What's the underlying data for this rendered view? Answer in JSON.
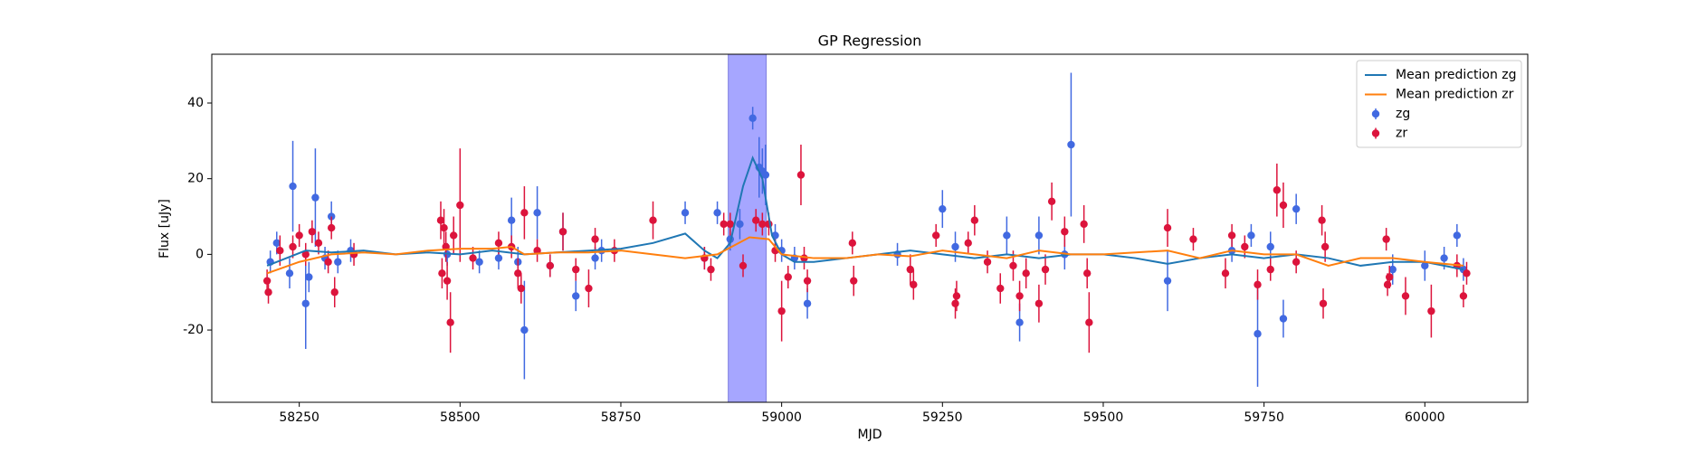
{
  "chart_data": {
    "type": "scatter",
    "title": "GP Regression",
    "x_label": "MJD",
    "y_label": "Flux [uJy]",
    "xlim": [
      58114,
      60160
    ],
    "ylim": [
      -39.1,
      52.9
    ],
    "xticks": [
      58250,
      58500,
      58750,
      59000,
      59250,
      59500,
      59750,
      60000
    ],
    "yticks": [
      -20,
      0,
      20,
      40
    ],
    "legend": "upper right",
    "span": [
      58917,
      58976
    ],
    "span_color": "#a6a6ff",
    "lines": [
      {
        "name": "Mean prediction zg",
        "color": "#1f77b4",
        "x": [
          58200,
          58230,
          58260,
          58300,
          58350,
          58400,
          58450,
          58500,
          58550,
          58600,
          58650,
          58700,
          58750,
          58800,
          58850,
          58880,
          58900,
          58920,
          58940,
          58955,
          58970,
          58985,
          59000,
          59020,
          59050,
          59100,
          59150,
          59200,
          59250,
          59300,
          59350,
          59400,
          59450,
          59500,
          59550,
          59600,
          59650,
          59700,
          59750,
          59800,
          59850,
          59900,
          59950,
          60000,
          60060
        ],
        "values": [
          -3,
          -1,
          1,
          0.5,
          1,
          0,
          0.5,
          0,
          1,
          0,
          0.5,
          1,
          1.5,
          3,
          5.5,
          1,
          -1,
          3,
          18,
          25.5,
          20,
          5,
          0,
          -2,
          -2,
          -1,
          0,
          1,
          0,
          -1,
          0,
          -1,
          0,
          0,
          -1,
          -2.5,
          -1,
          0,
          -1,
          0,
          -1,
          -3,
          -2,
          -2,
          -4
        ]
      },
      {
        "name": "Mean prediction zr",
        "color": "#ff7f0e",
        "x": [
          58200,
          58250,
          58300,
          58350,
          58400,
          58450,
          58500,
          58550,
          58580,
          58600,
          58650,
          58700,
          58750,
          58800,
          58850,
          58900,
          58950,
          58980,
          59000,
          59050,
          59100,
          59150,
          59200,
          59250,
          59300,
          59350,
          59400,
          59450,
          59500,
          59550,
          59600,
          59650,
          59700,
          59750,
          59800,
          59850,
          59900,
          59950,
          60000,
          60060
        ],
        "values": [
          -5,
          -2,
          0,
          0.5,
          0,
          1,
          1.5,
          1.5,
          2,
          0,
          0.5,
          0.5,
          1,
          0,
          -1,
          0,
          4.5,
          4,
          0,
          -1,
          -1,
          0,
          -0.5,
          1,
          0,
          -1,
          1,
          0,
          0,
          0.5,
          1,
          -1,
          1,
          0,
          0,
          -3,
          -1,
          -1,
          -2,
          -3
        ]
      }
    ],
    "series": [
      {
        "name": "zg",
        "color": "#4169e1",
        "x": [
          58205,
          58215,
          58235,
          58240,
          58260,
          58265,
          58275,
          58290,
          58300,
          58310,
          58330,
          58480,
          58530,
          58560,
          58580,
          58590,
          58600,
          58620,
          58640,
          58660,
          58680,
          58710,
          58720,
          58850,
          58880,
          58900,
          58920,
          58935,
          58955,
          58965,
          58970,
          58975,
          58990,
          59000,
          59020,
          59040,
          59180,
          59250,
          59270,
          59350,
          59370,
          59400,
          59440,
          59450,
          59600,
          59700,
          59730,
          59740,
          59760,
          59780,
          59800,
          59950,
          60000,
          60030,
          60050,
          60060
        ],
        "values": [
          -2,
          3,
          -5,
          18,
          -13,
          -6,
          15,
          -1,
          10,
          -2,
          1,
          0,
          -2,
          -1,
          9,
          -2,
          -20,
          11,
          -3,
          6,
          -11,
          -1,
          1,
          11,
          -1,
          11,
          4,
          8,
          36,
          23,
          22,
          21,
          5,
          1,
          -1,
          -13,
          0,
          12,
          2,
          5,
          -18,
          5,
          0,
          29,
          -7,
          1,
          5,
          -21,
          2,
          -17,
          12,
          -4,
          -3,
          -1,
          5,
          -4
        ],
        "errors": [
          3,
          3,
          4,
          12,
          12,
          4,
          13,
          3,
          4,
          3,
          3,
          3,
          3,
          3,
          6,
          4,
          13,
          7,
          3,
          5,
          4,
          3,
          3,
          3,
          3,
          3,
          3,
          4,
          3,
          8,
          6,
          8,
          3,
          3,
          3,
          4,
          3,
          5,
          4,
          5,
          5,
          5,
          4,
          19,
          8,
          3,
          3,
          14,
          4,
          5,
          4,
          4,
          4,
          3,
          3,
          3
        ]
      },
      {
        "name": "zr",
        "color": "#dc143c",
        "x": [
          58200,
          58202,
          58220,
          58240,
          58250,
          58260,
          58270,
          58280,
          58295,
          58300,
          58305,
          58335,
          58470,
          58472,
          58475,
          58478,
          58480,
          58485,
          58490,
          58500,
          58520,
          58560,
          58580,
          58590,
          58595,
          58600,
          58620,
          58640,
          58660,
          58680,
          58700,
          58710,
          58740,
          58800,
          58880,
          58890,
          58910,
          58920,
          58940,
          58960,
          58970,
          58980,
          58990,
          59000,
          59010,
          59030,
          59035,
          59040,
          59110,
          59112,
          59200,
          59205,
          59240,
          59270,
          59272,
          59290,
          59300,
          59320,
          59340,
          59360,
          59370,
          59380,
          59400,
          59410,
          59420,
          59440,
          59470,
          59475,
          59478,
          59600,
          59640,
          59690,
          59700,
          59720,
          59740,
          59760,
          59770,
          59780,
          59800,
          59840,
          59842,
          59845,
          59940,
          59942,
          59945,
          59970,
          60010,
          60050,
          60060,
          60065
        ],
        "values": [
          -7,
          -10,
          1,
          2,
          5,
          0,
          6,
          3,
          -2,
          7,
          -10,
          0,
          9,
          -5,
          7,
          2,
          -7,
          -18,
          5,
          13,
          -1,
          3,
          2,
          -5,
          -9,
          11,
          1,
          -3,
          6,
          -4,
          -9,
          4,
          1,
          9,
          -1,
          -4,
          8,
          8,
          -3,
          9,
          8,
          8,
          1,
          -15,
          -6,
          21,
          -1,
          -7,
          3,
          -7,
          -4,
          -8,
          5,
          -13,
          -11,
          3,
          9,
          -2,
          -9,
          -3,
          -11,
          -5,
          -13,
          -4,
          14,
          6,
          8,
          -5,
          -18,
          7,
          4,
          -5,
          5,
          2,
          -8,
          -4,
          17,
          13,
          -2,
          9,
          -13,
          2,
          4,
          -8,
          -6,
          -11,
          -15,
          -3,
          -11,
          -5
        ],
        "errors": [
          3,
          3,
          4,
          3,
          3,
          3,
          3,
          3,
          3,
          3,
          4,
          3,
          5,
          4,
          5,
          4,
          5,
          8,
          5,
          15,
          3,
          3,
          3,
          4,
          4,
          7,
          3,
          3,
          5,
          3,
          5,
          3,
          3,
          5,
          3,
          3,
          3,
          3,
          3,
          3,
          3,
          3,
          3,
          8,
          3,
          8,
          3,
          3,
          3,
          4,
          4,
          4,
          3,
          4,
          4,
          3,
          4,
          3,
          4,
          4,
          4,
          4,
          5,
          4,
          5,
          4,
          5,
          4,
          8,
          5,
          3,
          4,
          3,
          3,
          4,
          3,
          7,
          6,
          3,
          4,
          4,
          4,
          3,
          3,
          3,
          5,
          7,
          3,
          3,
          3
        ]
      }
    ]
  }
}
